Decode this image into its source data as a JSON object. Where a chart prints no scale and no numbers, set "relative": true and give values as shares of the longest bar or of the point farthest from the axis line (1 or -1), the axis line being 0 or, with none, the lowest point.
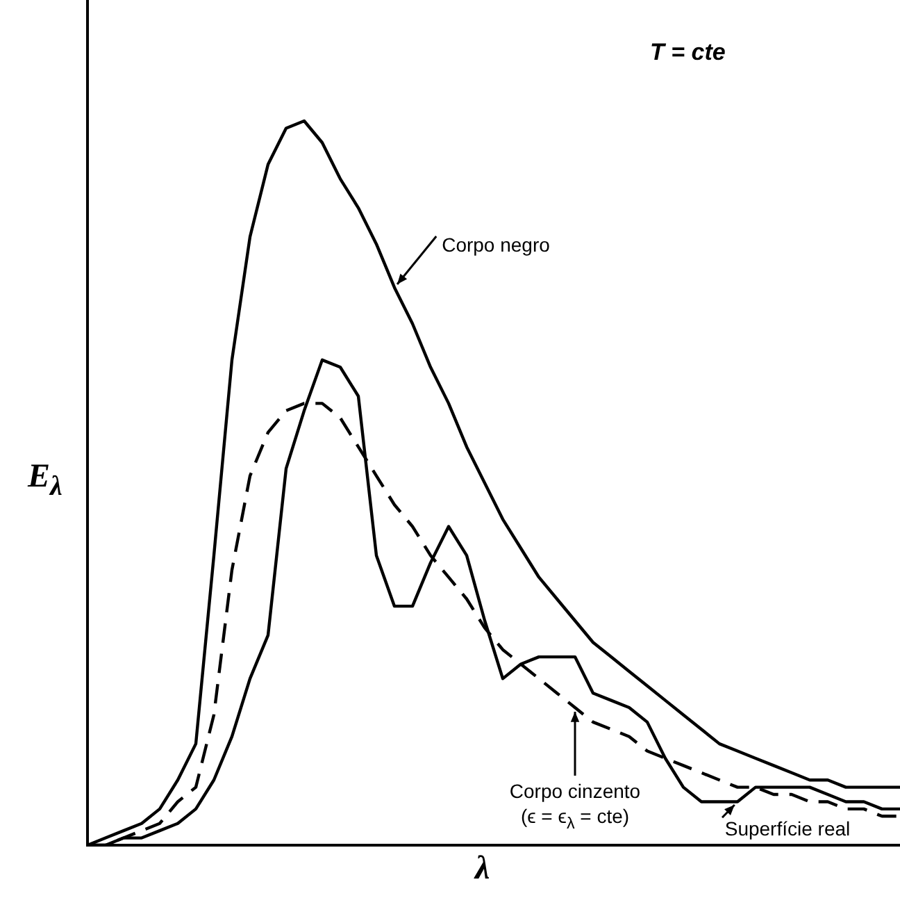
{
  "chart_data": {
    "type": "line",
    "relative": true,
    "marker": "none",
    "xlabel": "λ",
    "ylabel": "E$_{λ}$",
    "annotations": [
      "T = cte"
    ],
    "categories": [
      null,
      null,
      null,
      null,
      null,
      null,
      null,
      null,
      null,
      null,
      null,
      null,
      null,
      null,
      null,
      null,
      null,
      null,
      null,
      null,
      null,
      null,
      null,
      null,
      null,
      null,
      null,
      null,
      null,
      null,
      null,
      null,
      null,
      null,
      null,
      null,
      null,
      null,
      null,
      null,
      null,
      null,
      null,
      null,
      null,
      null
    ],
    "series": [
      {
        "name": "Corpo negro",
        "color": "#000000",
        "line_style": "solid",
        "values": [
          0,
          0.01,
          0.02,
          0.03,
          0.05,
          0.09,
          0.14,
          0.4,
          0.67,
          0.84,
          0.94,
          0.99,
          1.0,
          0.97,
          0.92,
          0.88,
          0.83,
          0.77,
          0.72,
          0.66,
          0.61,
          0.55,
          0.5,
          0.45,
          0.41,
          0.37,
          0.34,
          0.31,
          0.28,
          0.26,
          0.24,
          0.22,
          0.2,
          0.18,
          0.16,
          0.14,
          0.13,
          0.12,
          0.11,
          0.1,
          0.09,
          0.09,
          0.08,
          0.08,
          0.08,
          0.08
        ]
      },
      {
        "name": "Corpo cinzento (ϵ = ϵ$_{λ}$ = cte)",
        "color": "#000000",
        "line_style": "dashed",
        "values": [
          0,
          0,
          0.01,
          0.02,
          0.03,
          0.06,
          0.08,
          0.18,
          0.38,
          0.51,
          0.57,
          0.6,
          0.61,
          0.61,
          0.59,
          0.55,
          0.51,
          0.47,
          0.44,
          0.4,
          0.37,
          0.34,
          0.3,
          0.27,
          0.25,
          0.23,
          0.21,
          0.19,
          0.17,
          0.16,
          0.15,
          0.13,
          0.12,
          0.11,
          0.1,
          0.09,
          0.08,
          0.08,
          0.07,
          0.07,
          0.06,
          0.06,
          0.05,
          0.05,
          0.04,
          0.04
        ]
      },
      {
        "name": "Superfície real",
        "color": "#000000",
        "line_style": "solid",
        "values": [
          0,
          0,
          0.01,
          0.01,
          0.02,
          0.03,
          0.05,
          0.09,
          0.15,
          0.23,
          0.29,
          0.52,
          0.6,
          0.67,
          0.66,
          0.62,
          0.4,
          0.33,
          0.33,
          0.39,
          0.44,
          0.4,
          0.31,
          0.23,
          0.25,
          0.26,
          0.26,
          0.26,
          0.21,
          0.2,
          0.19,
          0.17,
          0.12,
          0.08,
          0.06,
          0.06,
          0.06,
          0.08,
          0.08,
          0.08,
          0.08,
          0.07,
          0.06,
          0.06,
          0.05,
          0.05
        ]
      }
    ]
  }
}
